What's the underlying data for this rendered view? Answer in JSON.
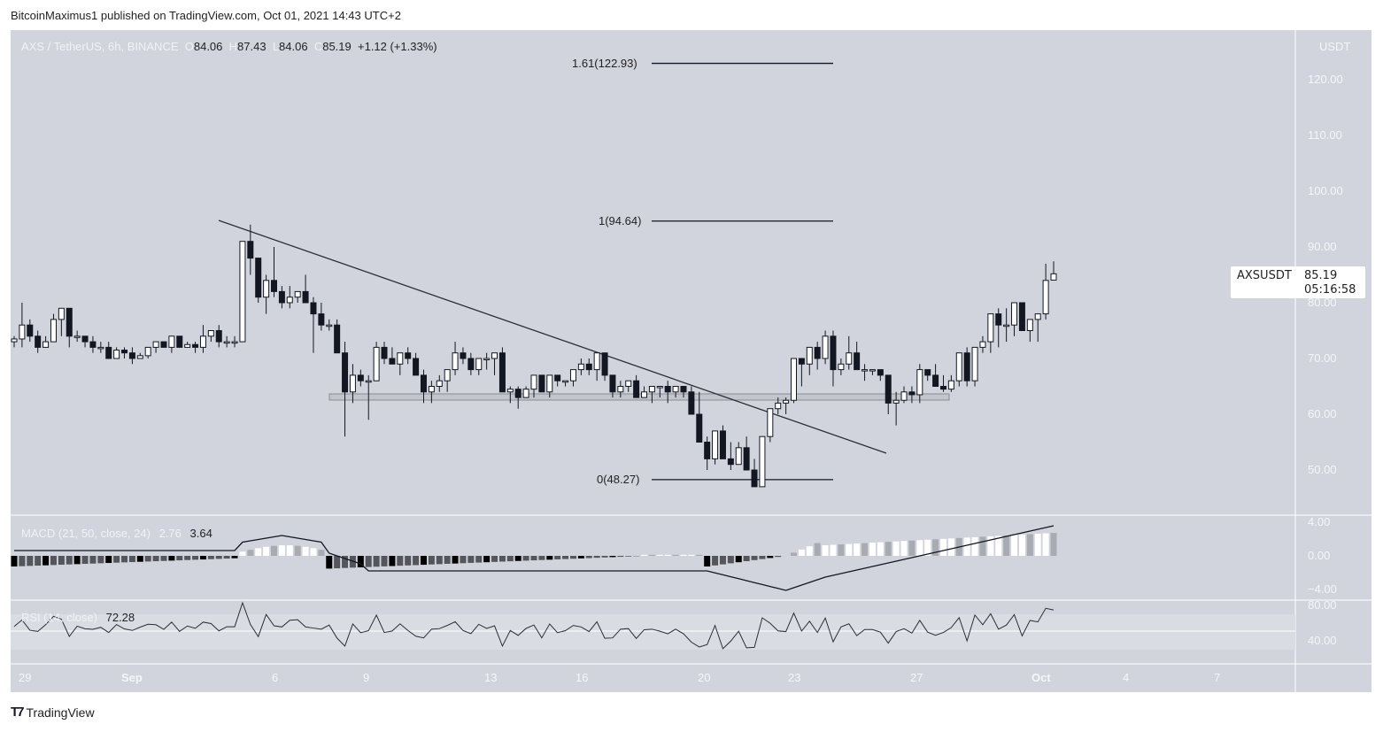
{
  "publisher": "BitcoinMaximus1 published on TradingView.com, Oct 01, 2021 14:43 UTC+2",
  "legend": {
    "symbol": "AXS / TetherUS, 6h, BINANCE",
    "o_label": "O",
    "o": "84.06",
    "h_label": "H",
    "h": "87.43",
    "l_label": "L",
    "l": "84.06",
    "c_label": "C",
    "c": "85.19",
    "change": "+1.12 (+1.33%)"
  },
  "price_axis": {
    "currency": "USDT",
    "ticks": [
      "120.00",
      "110.00",
      "100.00",
      "90.00",
      "80.00",
      "70.00",
      "60.00",
      "50.00"
    ]
  },
  "price_tag": {
    "symbol": "AXSUSDT",
    "price": "85.19",
    "countdown": "05:16:58"
  },
  "fib": [
    {
      "label": "1.61(122.93)",
      "value": 122.93
    },
    {
      "label": "1(94.64)",
      "value": 94.64
    },
    {
      "label": "0(48.27)",
      "value": 48.27
    }
  ],
  "macd": {
    "label": "MACD (21, 50, close, 24)",
    "hist": "2.76",
    "macd": "3.64",
    "ticks": [
      "4.00",
      "0.00",
      "−4.00"
    ]
  },
  "rsi": {
    "label": "RSI (14, close)",
    "value": "72.28",
    "ticks": [
      "80.00",
      "40.00"
    ]
  },
  "time_axis": {
    "ticks": [
      "29",
      "Sep",
      "6",
      "9",
      "13",
      "16",
      "20",
      "23",
      "27",
      "Oct",
      "4",
      "7"
    ]
  },
  "footer": {
    "logo": "TradingView"
  },
  "colors": {
    "background": "#d1d4dc",
    "up": "#ffffff",
    "down": "#131722",
    "line": "#131722",
    "grid": "#ffffff"
  },
  "chart_data": {
    "type": "candlestick",
    "title": "AXS / TetherUS, 6h, BINANCE",
    "ylabel": "USDT",
    "ylim": [
      45,
      128
    ],
    "x_ticks": [
      "29",
      "Sep",
      "6",
      "9",
      "13",
      "16",
      "20",
      "23",
      "27",
      "Oct",
      "4",
      "7"
    ],
    "candles": [
      [
        73,
        74,
        72,
        73.5
      ],
      [
        73.5,
        80,
        72,
        76
      ],
      [
        76,
        77,
        73,
        74
      ],
      [
        74,
        75,
        71,
        72
      ],
      [
        72,
        74,
        72,
        73
      ],
      [
        73,
        78,
        73,
        77
      ],
      [
        77,
        79,
        74,
        79
      ],
      [
        79,
        79,
        72,
        74
      ],
      [
        74,
        75,
        73,
        74
      ],
      [
        74,
        74,
        72,
        73
      ],
      [
        73,
        74,
        71,
        72
      ],
      [
        72,
        73,
        71,
        72
      ],
      [
        72,
        73,
        70,
        70
      ],
      [
        70,
        72,
        70,
        71.5
      ],
      [
        71.5,
        72,
        70,
        71
      ],
      [
        71,
        72,
        69,
        70
      ],
      [
        70,
        71,
        70,
        70.5
      ],
      [
        70.5,
        71,
        70,
        72
      ],
      [
        72,
        73,
        71,
        73
      ],
      [
        73,
        73,
        72,
        72
      ],
      [
        72,
        74,
        71,
        74
      ],
      [
        74,
        74,
        72,
        72
      ],
      [
        72,
        73,
        72,
        72.5
      ],
      [
        72.5,
        73,
        71,
        72
      ],
      [
        72,
        76,
        71,
        74
      ],
      [
        74,
        75,
        73,
        75
      ],
      [
        75,
        76,
        72,
        73
      ],
      [
        73,
        74,
        72,
        73
      ],
      [
        73,
        74,
        72,
        73
      ],
      [
        73,
        91,
        73,
        91
      ],
      [
        91,
        94,
        85,
        88
      ],
      [
        88,
        88,
        80,
        81
      ],
      [
        81,
        85,
        78,
        84
      ],
      [
        84,
        90,
        81,
        82
      ],
      [
        82,
        83,
        79,
        80
      ],
      [
        80,
        83,
        79,
        81
      ],
      [
        81,
        82,
        80,
        82
      ],
      [
        82,
        85,
        80,
        80
      ],
      [
        80,
        81,
        71,
        78
      ],
      [
        78,
        80,
        75,
        76
      ],
      [
        76,
        77,
        75,
        76
      ],
      [
        76,
        77,
        73,
        71
      ],
      [
        71,
        73,
        56,
        64
      ],
      [
        64,
        69,
        62,
        67
      ],
      [
        67,
        68,
        65,
        66
      ],
      [
        66,
        67,
        59,
        66
      ],
      [
        66,
        73,
        66,
        72
      ],
      [
        72,
        73,
        69,
        70
      ],
      [
        70,
        72,
        70,
        69
      ],
      [
        69,
        70,
        67,
        71
      ],
      [
        71,
        72,
        69,
        70
      ],
      [
        70,
        71,
        68,
        67
      ],
      [
        67,
        68,
        62,
        64
      ],
      [
        64,
        66,
        62,
        65
      ],
      [
        65,
        67,
        64,
        66
      ],
      [
        66,
        68,
        64,
        68
      ],
      [
        68,
        73,
        67,
        71
      ],
      [
        71,
        72,
        69,
        70
      ],
      [
        70,
        71,
        67,
        68
      ],
      [
        68,
        70,
        67,
        70
      ],
      [
        70,
        71,
        68,
        70
      ],
      [
        70,
        71,
        67,
        71
      ],
      [
        71,
        72,
        64,
        64
      ],
      [
        64,
        65,
        62,
        64.5
      ],
      [
        64.5,
        65,
        61,
        63
      ],
      [
        63,
        65,
        63,
        64.5
      ],
      [
        64.5,
        67,
        63,
        67
      ],
      [
        67,
        67,
        64,
        64
      ],
      [
        64,
        67,
        63,
        67
      ],
      [
        67,
        67,
        65,
        66
      ],
      [
        66,
        66,
        65,
        66
      ],
      [
        66,
        68,
        65,
        68
      ],
      [
        68,
        70,
        67,
        69
      ],
      [
        69,
        70,
        67,
        68
      ],
      [
        68,
        71,
        66,
        71
      ],
      [
        71,
        71,
        66,
        67
      ],
      [
        67,
        67,
        63,
        64
      ],
      [
        64,
        66,
        63,
        65
      ],
      [
        65,
        66,
        64,
        66
      ],
      [
        66,
        67,
        63,
        63
      ],
      [
        63,
        65,
        63,
        64
      ],
      [
        64,
        65,
        62,
        65
      ],
      [
        65,
        65,
        63,
        65
      ],
      [
        65,
        66,
        62,
        64
      ],
      [
        64,
        65,
        63,
        65
      ],
      [
        65,
        65,
        63,
        64
      ],
      [
        64,
        65,
        61,
        60
      ],
      [
        60,
        64,
        56,
        55
      ],
      [
        55,
        56,
        50,
        52
      ],
      [
        52,
        57,
        51,
        57
      ],
      [
        57,
        58,
        53,
        52
      ],
      [
        52,
        55,
        50,
        51
      ],
      [
        51,
        55,
        51,
        54
      ],
      [
        54,
        56,
        51,
        50
      ],
      [
        50,
        52,
        48,
        47
      ],
      [
        47,
        56,
        47,
        56
      ],
      [
        56,
        61,
        55,
        61
      ],
      [
        61,
        63,
        60,
        62
      ],
      [
        62,
        63,
        60,
        62.5
      ],
      [
        62.5,
        69,
        62,
        70
      ],
      [
        70,
        70,
        65,
        69
      ],
      [
        69,
        72,
        67,
        72
      ],
      [
        72,
        73,
        68,
        70
      ],
      [
        70,
        75,
        69,
        74
      ],
      [
        74,
        75,
        65,
        68
      ],
      [
        68,
        70,
        67,
        69
      ],
      [
        69,
        74,
        68,
        71
      ],
      [
        71,
        73,
        68,
        68
      ],
      [
        68,
        69,
        66,
        68
      ],
      [
        68,
        68,
        67,
        68
      ],
      [
        68,
        68,
        66,
        67
      ],
      [
        67,
        67,
        60,
        62
      ],
      [
        62,
        64,
        58,
        62.5
      ],
      [
        62.5,
        65,
        62,
        64
      ],
      [
        64,
        65,
        62,
        63.5
      ],
      [
        63.5,
        69,
        62,
        68
      ],
      [
        68,
        68,
        66,
        67
      ],
      [
        67,
        69,
        65,
        65
      ],
      [
        65,
        67,
        64,
        64.5
      ],
      [
        64.5,
        67,
        64,
        66
      ],
      [
        66,
        71,
        65,
        71
      ],
      [
        71,
        72,
        65,
        66
      ],
      [
        66,
        72,
        65,
        72
      ],
      [
        72,
        74,
        71,
        73
      ],
      [
        73,
        73,
        71,
        78
      ],
      [
        78,
        79,
        72,
        76
      ],
      [
        76,
        79,
        73,
        76
      ],
      [
        76,
        80,
        74,
        80
      ],
      [
        80,
        80,
        75,
        75
      ],
      [
        75,
        76,
        73,
        77
      ],
      [
        77,
        78,
        73,
        78
      ],
      [
        78,
        87,
        77,
        84
      ],
      [
        84.06,
        87.43,
        84.06,
        85.19
      ]
    ],
    "macd_line_note": "MACD line rises from ~-5 at Sep 21 to 3.64; histogram 2.76",
    "rsi_last": 72.28
  }
}
